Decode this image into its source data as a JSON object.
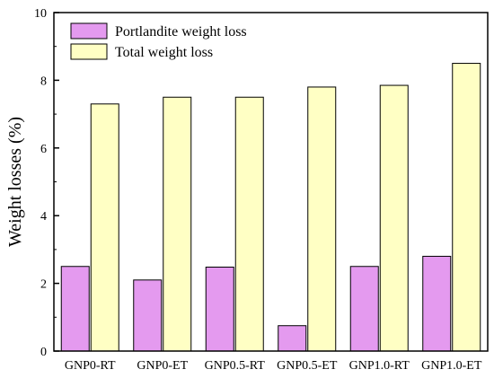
{
  "chart_data": {
    "type": "bar",
    "categories": [
      "GNP0-RT",
      "GNP0-ET",
      "GNP0.5-RT",
      "GNP0.5-ET",
      "GNP1.0-RT",
      "GNP1.0-ET"
    ],
    "series": [
      {
        "name": "Portlandite weight loss",
        "values": [
          2.5,
          2.1,
          2.48,
          0.75,
          2.5,
          2.8
        ],
        "color": "#e49aef"
      },
      {
        "name": "Total weight loss",
        "values": [
          7.3,
          7.5,
          7.5,
          7.8,
          7.85,
          8.5
        ],
        "color": "#ffffc4"
      }
    ],
    "title": "",
    "xlabel": "",
    "ylabel": "Weight losses (%)",
    "ylim": [
      0,
      10
    ],
    "yticks": [
      "0",
      "2",
      "4",
      "6",
      "8",
      "10"
    ],
    "grid": false,
    "legend_position": "top-left"
  }
}
